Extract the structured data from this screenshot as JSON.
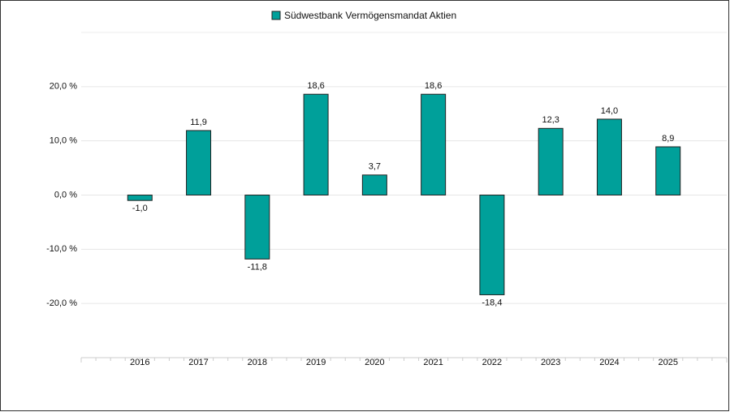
{
  "chart_data": {
    "type": "bar",
    "series": [
      {
        "name": "Südwestbank Vermögensmandat Aktien",
        "color": "#00a09a",
        "values": [
          -1.0,
          11.9,
          -11.8,
          18.6,
          3.7,
          18.6,
          -18.4,
          12.3,
          14.0,
          8.9
        ],
        "value_labels": [
          "-1,0",
          "11,9",
          "-11,8",
          "18,6",
          "3,7",
          "18,6",
          "-18,4",
          "12,3",
          "14,0",
          "8,9"
        ]
      }
    ],
    "categories": [
      "2016",
      "2017",
      "2018",
      "2019",
      "2020",
      "2021",
      "2022",
      "2023",
      "2024",
      "2025"
    ],
    "ylim": [
      -30,
      30
    ],
    "yticks": [
      {
        "value": -20,
        "label": "-20,0 %"
      },
      {
        "value": -10,
        "label": "-10,0 %"
      },
      {
        "value": 0,
        "label": "0,0 %"
      },
      {
        "value": 10,
        "label": "10,0 %"
      },
      {
        "value": 20,
        "label": "20,0 %"
      }
    ],
    "grid": true,
    "legend": "top"
  }
}
